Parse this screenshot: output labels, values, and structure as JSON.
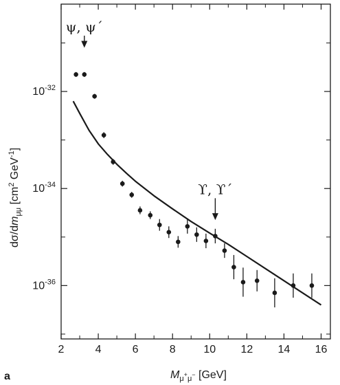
{
  "chart_data": {
    "type": "scatter",
    "panel_label": "a",
    "xlabel": {
      "main": "M",
      "sub": "μ",
      "sub_sup1": "+",
      "sub2": "μ",
      "sub_sup2": "−",
      "unit": " [GeV]"
    },
    "ylabel": {
      "pre": "dσ/d",
      "m": "m",
      "sub": "μμ",
      "unit_a": "  [cm",
      "unit_sup1": "2",
      "unit_b": " GeV",
      "unit_sup2": "-1",
      "unit_c": "]"
    },
    "xlim": [
      2,
      16.5
    ],
    "ylim_log10": [
      -37.1,
      -30.2
    ],
    "x_ticks": [
      2,
      4,
      6,
      8,
      10,
      12,
      14,
      16
    ],
    "x_tick_labels": [
      "2",
      "4",
      "6",
      "8",
      "10",
      "12",
      "14",
      "16"
    ],
    "y_ticks": [
      {
        "log": -32,
        "base": "10",
        "exp": "-32"
      },
      {
        "log": -34,
        "base": "10",
        "exp": "-34"
      },
      {
        "log": -36,
        "base": "10",
        "exp": "-36"
      }
    ],
    "y_minor_ticks_log": [
      -31,
      -33,
      -35,
      -37
    ],
    "points": [
      {
        "x": 2.8,
        "y": -31.65,
        "err": 0.05
      },
      {
        "x": 3.25,
        "y": -31.65,
        "err": 0.05
      },
      {
        "x": 3.8,
        "y": -32.1,
        "err": 0.05
      },
      {
        "x": 4.3,
        "y": -32.9,
        "err": 0.06
      },
      {
        "x": 4.8,
        "y": -33.45,
        "err": 0.06
      },
      {
        "x": 5.3,
        "y": -33.9,
        "err": 0.06
      },
      {
        "x": 5.8,
        "y": -34.13,
        "err": 0.06
      },
      {
        "x": 6.25,
        "y": -34.45,
        "err": 0.08
      },
      {
        "x": 6.8,
        "y": -34.55,
        "err": 0.08
      },
      {
        "x": 7.3,
        "y": -34.75,
        "err": 0.12
      },
      {
        "x": 7.8,
        "y": -34.9,
        "err": 0.12
      },
      {
        "x": 8.3,
        "y": -35.1,
        "err": 0.12
      },
      {
        "x": 8.8,
        "y": -34.78,
        "err": 0.15
      },
      {
        "x": 9.3,
        "y": -34.95,
        "err": 0.15
      },
      {
        "x": 9.8,
        "y": -35.08,
        "err": 0.15
      },
      {
        "x": 10.3,
        "y": -34.98,
        "err": 0.15
      },
      {
        "x": 10.8,
        "y": -35.28,
        "err": 0.15
      },
      {
        "x": 11.3,
        "y": -35.62,
        "err": 0.25
      },
      {
        "x": 11.8,
        "y": -35.93,
        "err": 0.3
      },
      {
        "x": 12.55,
        "y": -35.9,
        "err": 0.22
      },
      {
        "x": 13.5,
        "y": -36.15,
        "err": 0.3
      },
      {
        "x": 14.5,
        "y": -36.0,
        "err": 0.25
      },
      {
        "x": 15.5,
        "y": -36.0,
        "err": 0.25
      }
    ],
    "curve": [
      {
        "x": 2.65,
        "y": -32.2
      },
      {
        "x": 3.0,
        "y": -32.45
      },
      {
        "x": 3.5,
        "y": -32.8
      },
      {
        "x": 4.0,
        "y": -33.08
      },
      {
        "x": 4.5,
        "y": -33.3
      },
      {
        "x": 5.0,
        "y": -33.5
      },
      {
        "x": 5.5,
        "y": -33.68
      },
      {
        "x": 6.0,
        "y": -33.85
      },
      {
        "x": 7.0,
        "y": -34.15
      },
      {
        "x": 8.0,
        "y": -34.42
      },
      {
        "x": 9.0,
        "y": -34.68
      },
      {
        "x": 10.0,
        "y": -34.92
      },
      {
        "x": 11.0,
        "y": -35.15
      },
      {
        "x": 12.0,
        "y": -35.4
      },
      {
        "x": 13.0,
        "y": -35.65
      },
      {
        "x": 14.0,
        "y": -35.9
      },
      {
        "x": 15.0,
        "y": -36.15
      },
      {
        "x": 16.0,
        "y": -36.4
      }
    ],
    "annotations": [
      {
        "text": "ψ, ψ´",
        "x": 3.25,
        "arrow_from_log": -30.85,
        "arrow_to_log": -31.1
      },
      {
        "text": "ϒ, ϒ´",
        "x": 10.3,
        "arrow_from_log": -34.2,
        "arrow_to_log": -34.65
      }
    ],
    "colors": {
      "ink": "#1a1a1a",
      "background": "#ffffff"
    }
  }
}
